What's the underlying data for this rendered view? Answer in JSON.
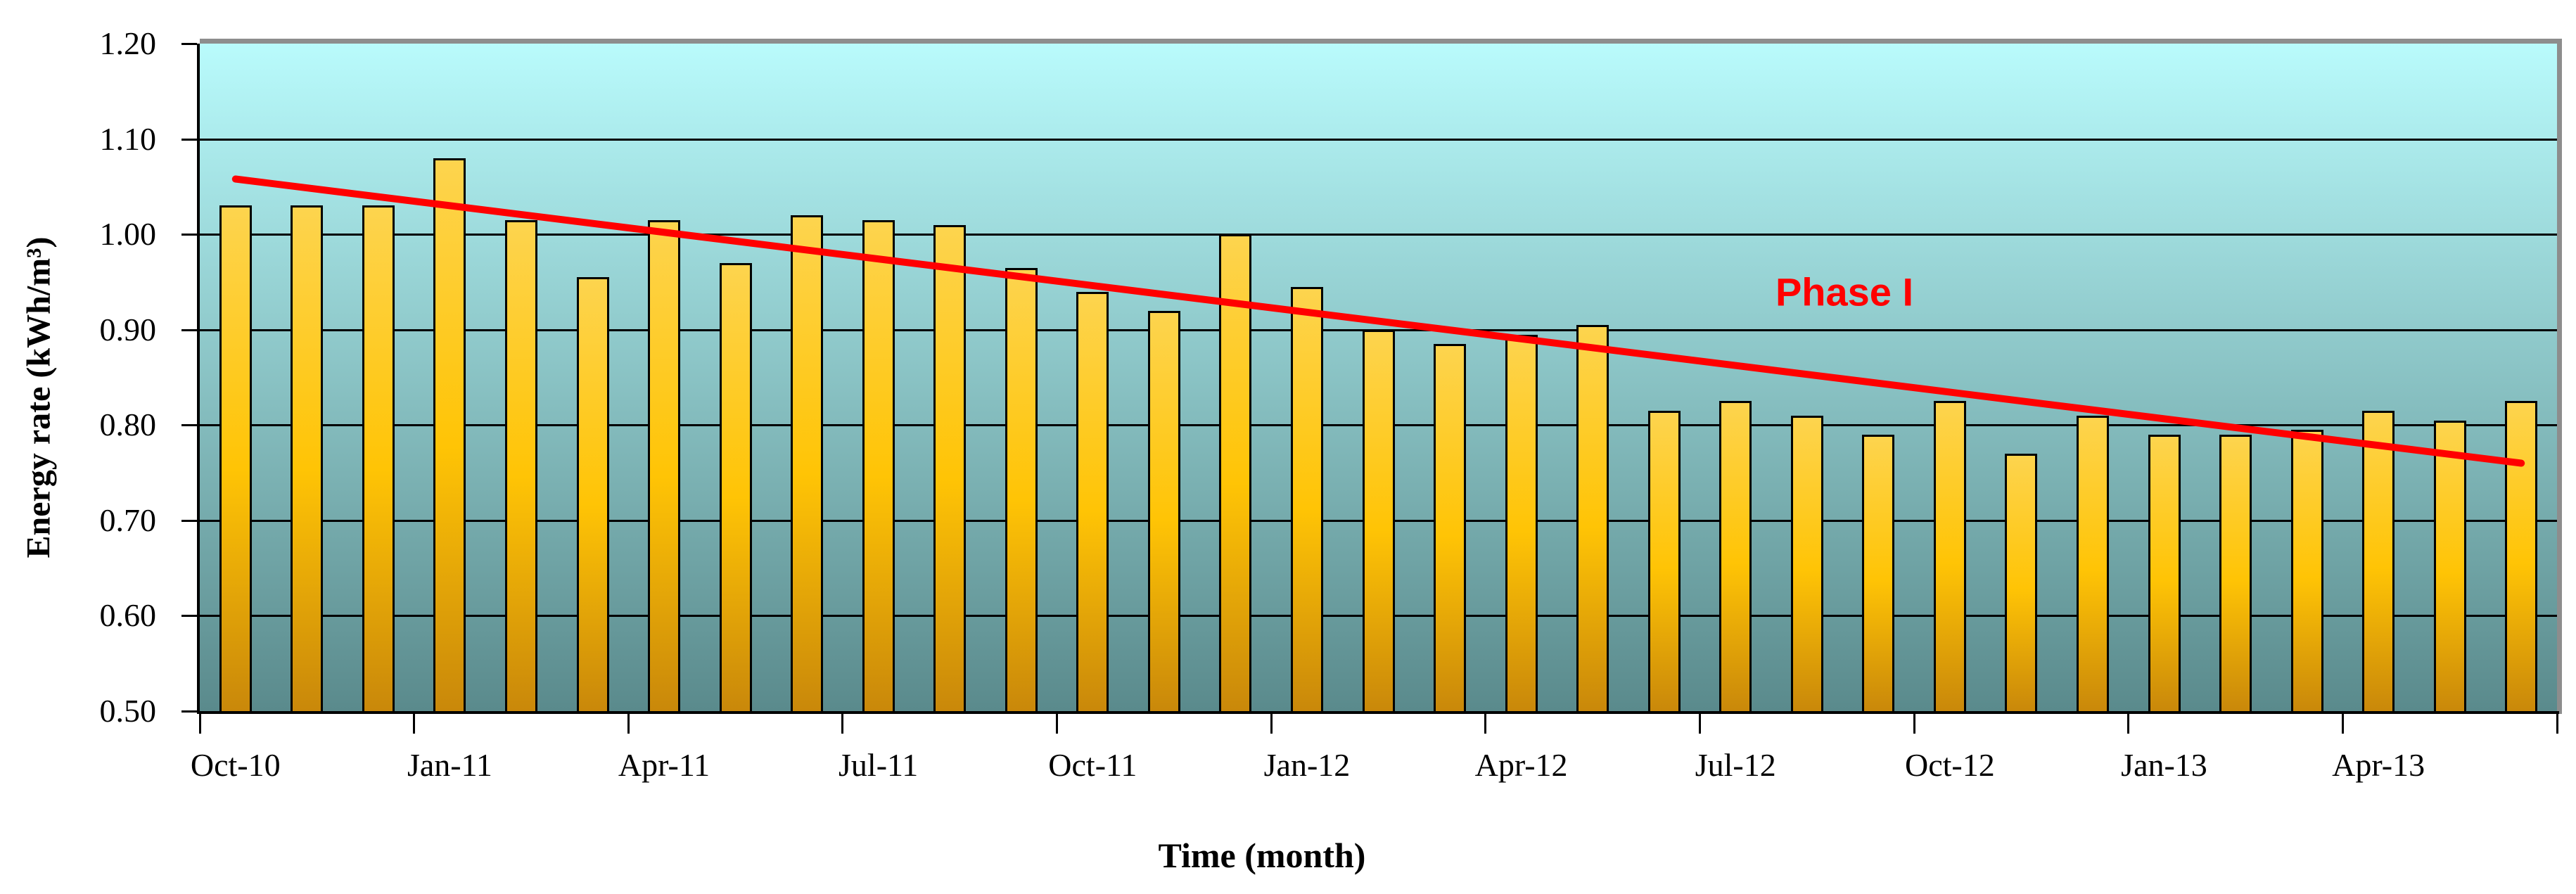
{
  "chart_data": {
    "type": "bar",
    "title": "",
    "xlabel": "Time (month)",
    "ylabel": "Energy rate (kWh/m³)",
    "categories": [
      "Oct-10",
      "Nov-10",
      "Dec-10",
      "Jan-11",
      "Feb-11",
      "Mar-11",
      "Apr-11",
      "May-11",
      "Jun-11",
      "Jul-11",
      "Aug-11",
      "Sep-11",
      "Oct-11",
      "Nov-11",
      "Dec-11",
      "Jan-12",
      "Feb-12",
      "Mar-12",
      "Apr-12",
      "May-12",
      "Jun-12",
      "Jul-12",
      "Aug-12",
      "Sep-12",
      "Oct-12",
      "Nov-12",
      "Dec-12",
      "Jan-13",
      "Feb-13",
      "Mar-13",
      "Apr-13",
      "May-13",
      "Jun-13"
    ],
    "values": [
      1.03,
      1.03,
      1.03,
      1.08,
      1.015,
      0.955,
      1.015,
      0.97,
      1.02,
      1.015,
      1.01,
      0.965,
      0.94,
      0.92,
      1.0,
      0.945,
      0.9,
      0.885,
      0.895,
      0.905,
      0.815,
      0.825,
      0.81,
      0.79,
      0.825,
      0.77,
      0.81,
      0.79,
      0.79,
      0.795,
      0.815,
      0.805,
      0.825
    ],
    "x_tick_labels": [
      "Oct-10",
      "Jan-11",
      "Apr-11",
      "Jul-11",
      "Oct-11",
      "Jan-12",
      "Apr-12",
      "Jul-12",
      "Oct-12",
      "Jan-13",
      "Apr-13"
    ],
    "x_tick_every": 3,
    "y_tick_labels": [
      "1.20",
      "1.10",
      "1.00",
      "0.90",
      "0.80",
      "0.70",
      "0.60",
      "0.50"
    ],
    "y_tick_values": [
      1.2,
      1.1,
      1.0,
      0.9,
      0.8,
      0.7,
      0.6,
      0.5
    ],
    "ylim": [
      0.5,
      1.2
    ],
    "grid": true,
    "legend_position": "none",
    "trendline": {
      "label": "Phase I",
      "start_category": "Oct-10",
      "start_value": 1.058,
      "end_category": "Jun-13",
      "end_value": 0.76,
      "color": "#ff0000"
    },
    "colors": {
      "bar_gradient_top": "#fdd44e",
      "bar_gradient_mid": "#ffc405",
      "bar_gradient_bottom": "#c9880a",
      "bar_border": "#000000",
      "plot_bg_top": "#b9fbfc",
      "plot_bg_bottom": "#5a8a8c",
      "plot_frame_gray": "#8d8d8d",
      "gridline": "#000000",
      "axis": "#000000",
      "text": "#000000",
      "trend_red": "#ff0000"
    }
  }
}
